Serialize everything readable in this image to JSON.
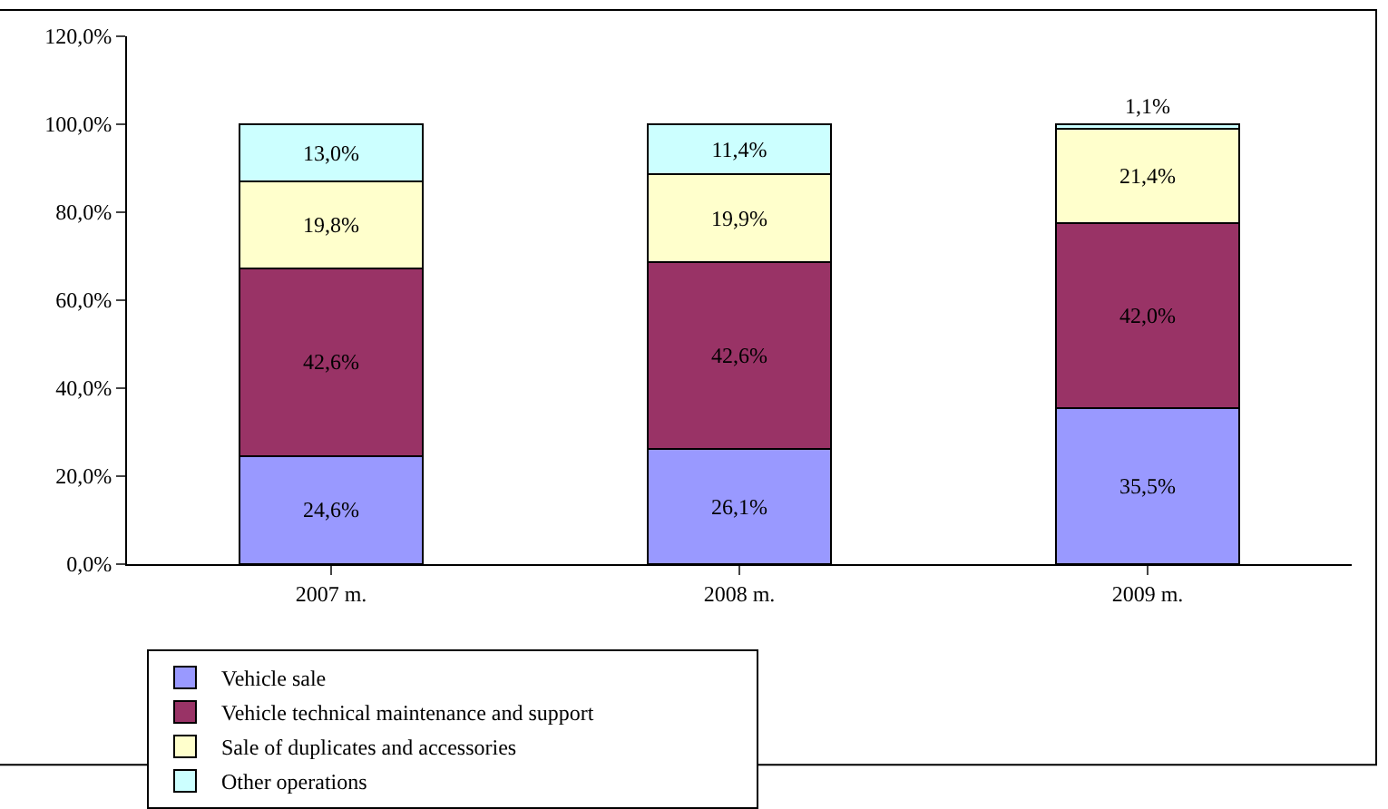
{
  "chart_data": {
    "type": "bar",
    "stacked": true,
    "categories": [
      "2007 m.",
      "2008 m.",
      "2009 m."
    ],
    "ylim": [
      0,
      120
    ],
    "yticks": [
      {
        "value": 0,
        "label": "0,0%"
      },
      {
        "value": 20,
        "label": "20,0%"
      },
      {
        "value": 40,
        "label": "40,0%"
      },
      {
        "value": 60,
        "label": "60,0%"
      },
      {
        "value": 80,
        "label": "80,0%"
      },
      {
        "value": 100,
        "label": "100,0%"
      },
      {
        "value": 120,
        "label": "120,0%"
      }
    ],
    "legend": "bottom",
    "series": [
      {
        "name": "Vehicle sale",
        "color": "#9999ff",
        "values": [
          24.6,
          26.1,
          35.5
        ],
        "value_labels": [
          "24,6%",
          "26,1%",
          "35,5%"
        ]
      },
      {
        "name": "Vehicle technical maintenance and support",
        "color": "#993366",
        "values": [
          42.6,
          42.6,
          42.0
        ],
        "value_labels": [
          "42,6%",
          "42,6%",
          "42,0%"
        ]
      },
      {
        "name": "Sale of duplicates and accessories",
        "color": "#ffffcc",
        "values": [
          19.8,
          19.9,
          21.4
        ],
        "value_labels": [
          "19,8%",
          "19,9%",
          "21,4%"
        ]
      },
      {
        "name": "Other operations",
        "color": "#ccffff",
        "values": [
          13.0,
          11.4,
          1.1
        ],
        "value_labels": [
          "13,0%",
          "11,4%",
          "1,1%"
        ]
      }
    ]
  }
}
